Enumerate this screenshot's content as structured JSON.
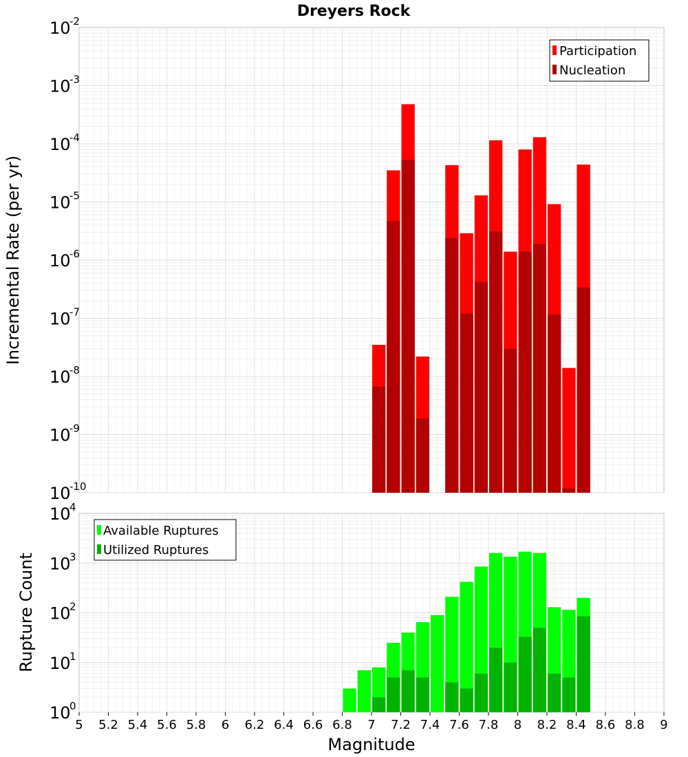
{
  "chart_data": [
    {
      "type": "bar",
      "title": "Dreyers Rock",
      "xlabel": "Magnitude",
      "ylabel": "Incremental Rate (per yr)",
      "yscale": "log",
      "xlim": [
        5,
        9
      ],
      "ylim": [
        1e-10,
        0.01
      ],
      "y_tick_exponents": [
        "-10",
        "-9",
        "-8",
        "-7",
        "-6",
        "-5",
        "-4",
        "-3",
        "-2"
      ],
      "grid": true,
      "legend_position": "top-right",
      "series": [
        {
          "name": "Participation",
          "color": "#ff0000",
          "x": [
            7.05,
            7.15,
            7.25,
            7.35,
            7.55,
            7.65,
            7.75,
            7.85,
            7.95,
            8.05,
            8.15,
            8.25,
            8.35,
            8.45
          ],
          "values": [
            3.5e-08,
            3.5e-05,
            0.00048,
            2.2e-08,
            4.3e-05,
            2.9e-06,
            1.3e-05,
            0.000115,
            1.4e-06,
            8e-05,
            0.00013,
            9.2e-06,
            1.4e-08,
            4.4e-05
          ]
        },
        {
          "name": "Nucleation",
          "color": "#b30000",
          "x": [
            7.05,
            7.15,
            7.25,
            7.35,
            7.55,
            7.65,
            7.75,
            7.85,
            7.95,
            8.05,
            8.15,
            8.25,
            8.35,
            8.45
          ],
          "values": [
            6.7e-09,
            4.7e-06,
            5.3e-05,
            1.9e-09,
            2.4e-06,
            1.2e-07,
            4.2e-07,
            3.1e-06,
            3e-08,
            1.4e-06,
            1.9e-06,
            1.15e-07,
            1.2e-10,
            3.4e-07
          ]
        }
      ]
    },
    {
      "type": "bar",
      "xlabel": "Magnitude",
      "ylabel": "Rupture Count",
      "yscale": "log",
      "xlim": [
        5,
        9
      ],
      "ylim": [
        1,
        10000
      ],
      "x_ticks": [
        "5",
        "5.2",
        "5.4",
        "5.6",
        "5.8",
        "6",
        "6.2",
        "6.4",
        "6.6",
        "6.8",
        "7",
        "7.2",
        "7.4",
        "7.6",
        "7.8",
        "8",
        "8.2",
        "8.4",
        "8.6",
        "8.8",
        "9"
      ],
      "y_tick_exponents": [
        "0",
        "1",
        "2",
        "3",
        "4"
      ],
      "grid": true,
      "legend_position": "top-left",
      "series": [
        {
          "name": "Available Ruptures",
          "color": "#00ff00",
          "x": [
            6.35,
            6.65,
            6.85,
            6.95,
            7.05,
            7.15,
            7.25,
            7.35,
            7.45,
            7.55,
            7.65,
            7.75,
            7.85,
            7.95,
            8.05,
            8.15,
            8.25,
            8.35,
            8.45,
            8.55
          ],
          "values": [
            1,
            1,
            3,
            7,
            8,
            25,
            40,
            65,
            90,
            210,
            420,
            850,
            1600,
            1350,
            1700,
            1600,
            130,
            115,
            200,
            1
          ]
        },
        {
          "name": "Utilized Ruptures",
          "color": "#00b300",
          "x": [
            7.05,
            7.15,
            7.25,
            7.35,
            7.55,
            7.65,
            7.75,
            7.85,
            7.95,
            8.05,
            8.15,
            8.25,
            8.35,
            8.45
          ],
          "values": [
            2,
            5,
            7,
            5,
            4,
            3,
            6,
            20,
            10,
            33,
            50,
            6,
            5,
            85
          ]
        }
      ]
    }
  ]
}
